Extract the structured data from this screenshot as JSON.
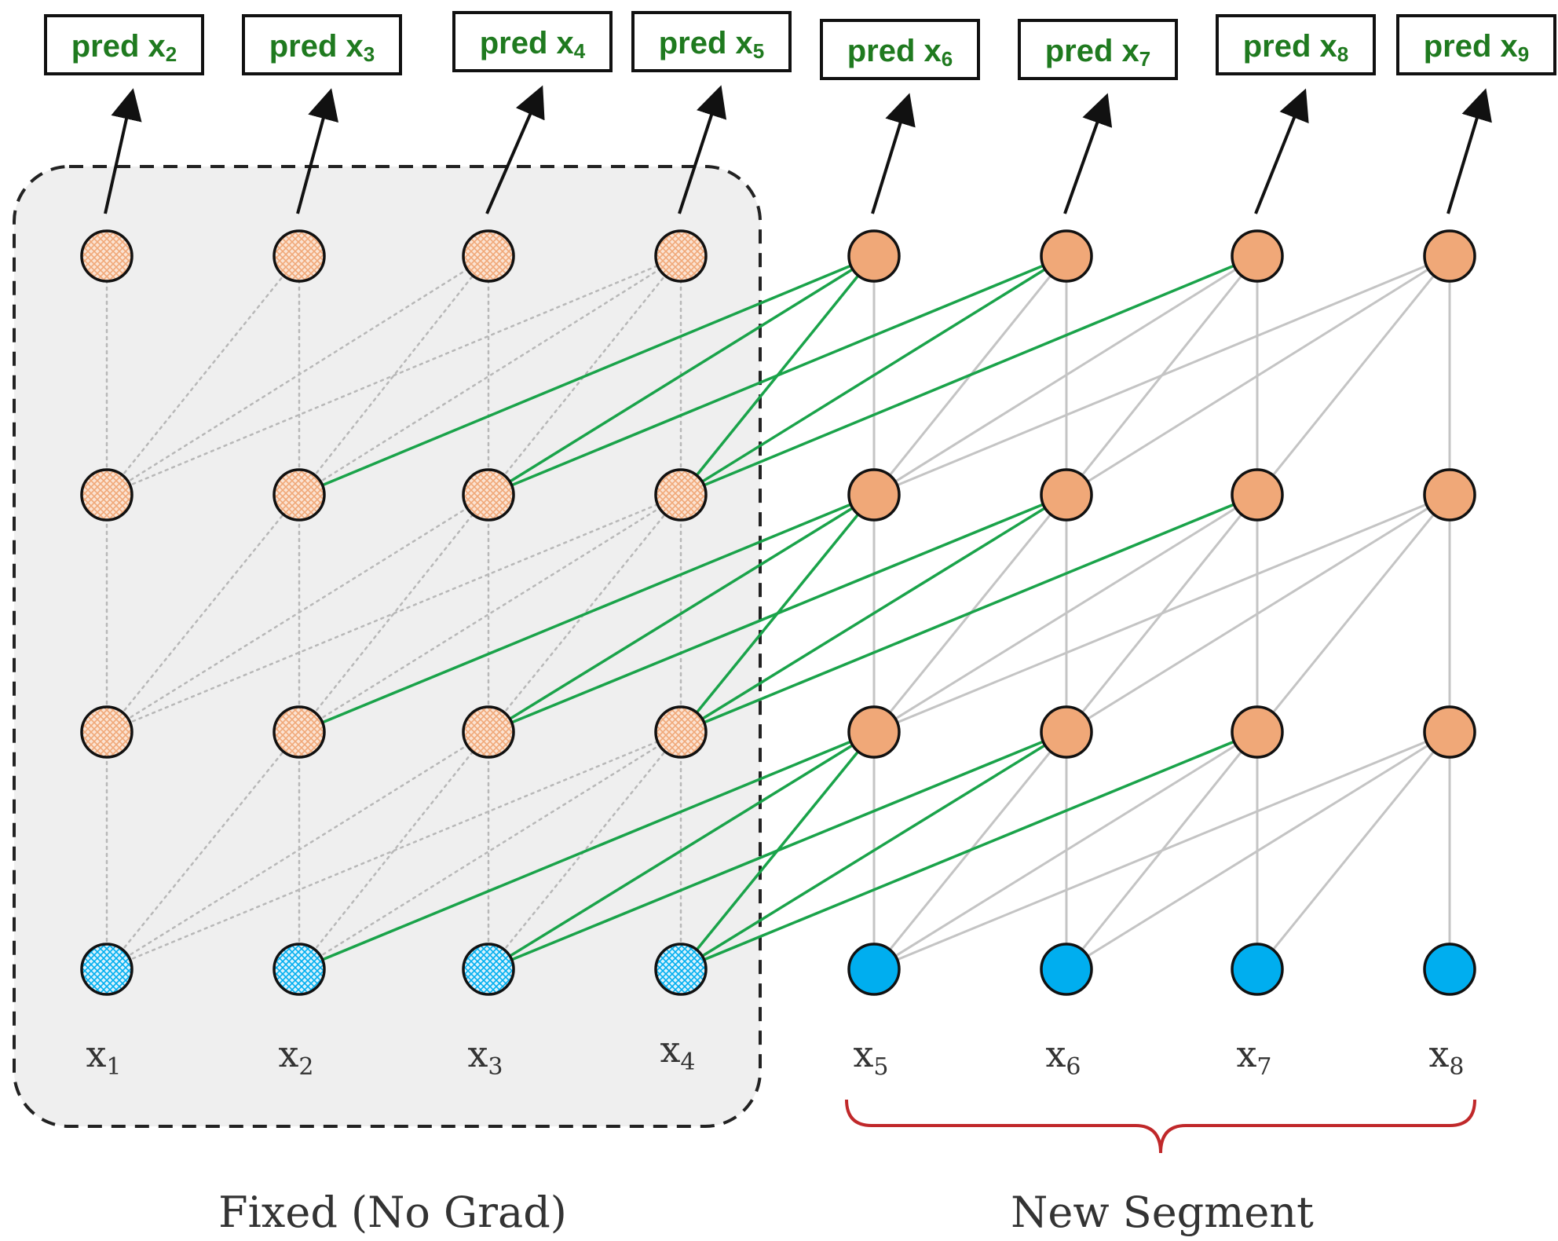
{
  "colors": {
    "fixed_bg": "#efefef",
    "node_orange": "#f0a878",
    "node_blue": "#00aeef",
    "edge_gray": "#c4c4c4",
    "edge_green": "#1aa34a",
    "brace_red": "#c0282a",
    "pred_text": "#1f7a1f"
  },
  "predictions": [
    {
      "prefix": "pred x",
      "sub": "2"
    },
    {
      "prefix": "pred x",
      "sub": "3"
    },
    {
      "prefix": "pred x",
      "sub": "4"
    },
    {
      "prefix": "pred x",
      "sub": "5"
    },
    {
      "prefix": "pred x",
      "sub": "6"
    },
    {
      "prefix": "pred x",
      "sub": "7"
    },
    {
      "prefix": "pred x",
      "sub": "8"
    },
    {
      "prefix": "pred x",
      "sub": "9"
    }
  ],
  "inputs": [
    {
      "base": "x",
      "sub": "1"
    },
    {
      "base": "x",
      "sub": "2"
    },
    {
      "base": "x",
      "sub": "3"
    },
    {
      "base": "x",
      "sub": "4"
    },
    {
      "base": "x",
      "sub": "5"
    },
    {
      "base": "x",
      "sub": "6"
    },
    {
      "base": "x",
      "sub": "7"
    },
    {
      "base": "x",
      "sub": "8"
    }
  ],
  "captions": {
    "fixed": "Fixed (No Grad)",
    "new": "New Segment"
  }
}
